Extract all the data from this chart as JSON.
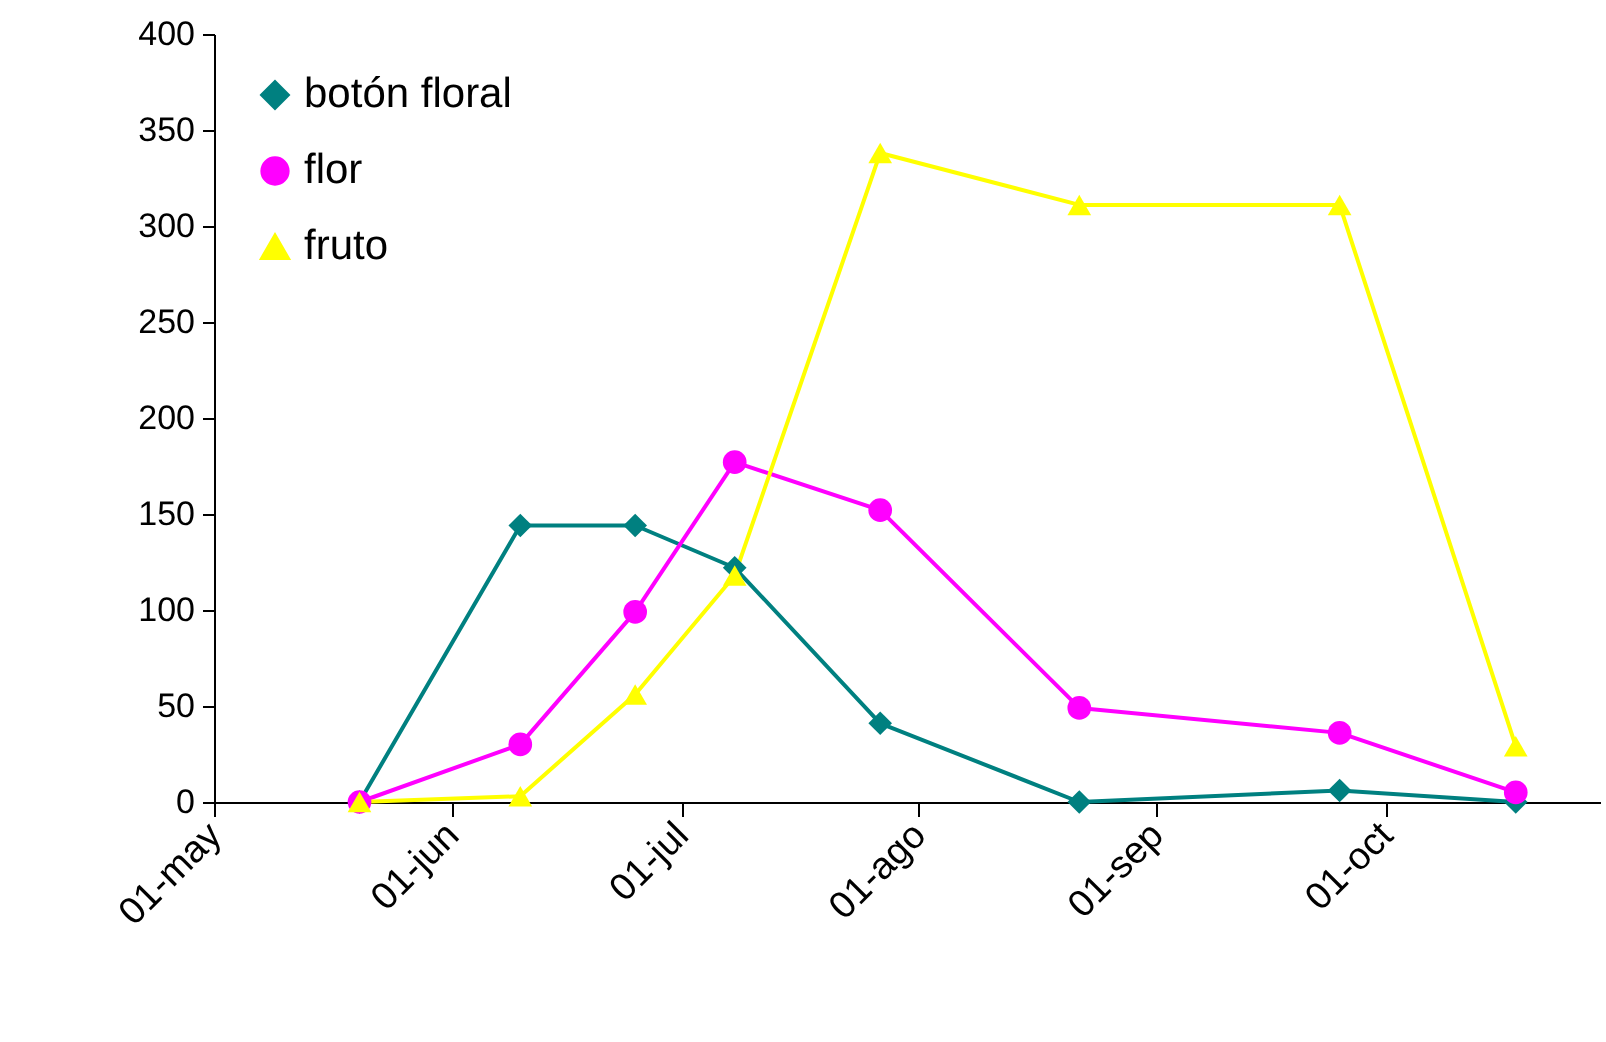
{
  "chart_data": {
    "type": "line",
    "x": [
      "--05-20",
      "--06-10",
      "--06-25",
      "--07-08",
      "--07-27",
      "--08-22",
      "--09-25",
      "--10-18"
    ],
    "series": [
      {
        "name": "botón floral",
        "color": "#008080",
        "marker": "diamond",
        "values": [
          0,
          144,
          144,
          122,
          41,
          0,
          6,
          0
        ]
      },
      {
        "name": "flor",
        "color": "#ff00ff",
        "marker": "circle",
        "values": [
          0,
          30,
          99,
          177,
          152,
          49,
          36,
          5
        ]
      },
      {
        "name": "fruto",
        "color": "#ffff00",
        "marker": "triangle",
        "values": [
          0,
          3,
          56,
          118,
          338,
          311,
          311,
          29
        ]
      }
    ],
    "xlim": [
      "--05-01",
      "--10-29"
    ],
    "xticks": [
      {
        "value": "--05-01",
        "label": "01-may"
      },
      {
        "value": "--06-01",
        "label": "01-jun"
      },
      {
        "value": "--07-01",
        "label": "01-jul"
      },
      {
        "value": "--08-01",
        "label": "01-ago"
      },
      {
        "value": "--09-01",
        "label": "01-sep"
      },
      {
        "value": "--10-01",
        "label": "01-oct"
      }
    ],
    "ylim": [
      0,
      400
    ],
    "yticks": [
      0,
      50,
      100,
      150,
      200,
      250,
      300,
      350,
      400
    ],
    "grid": false,
    "legend": "top left"
  }
}
